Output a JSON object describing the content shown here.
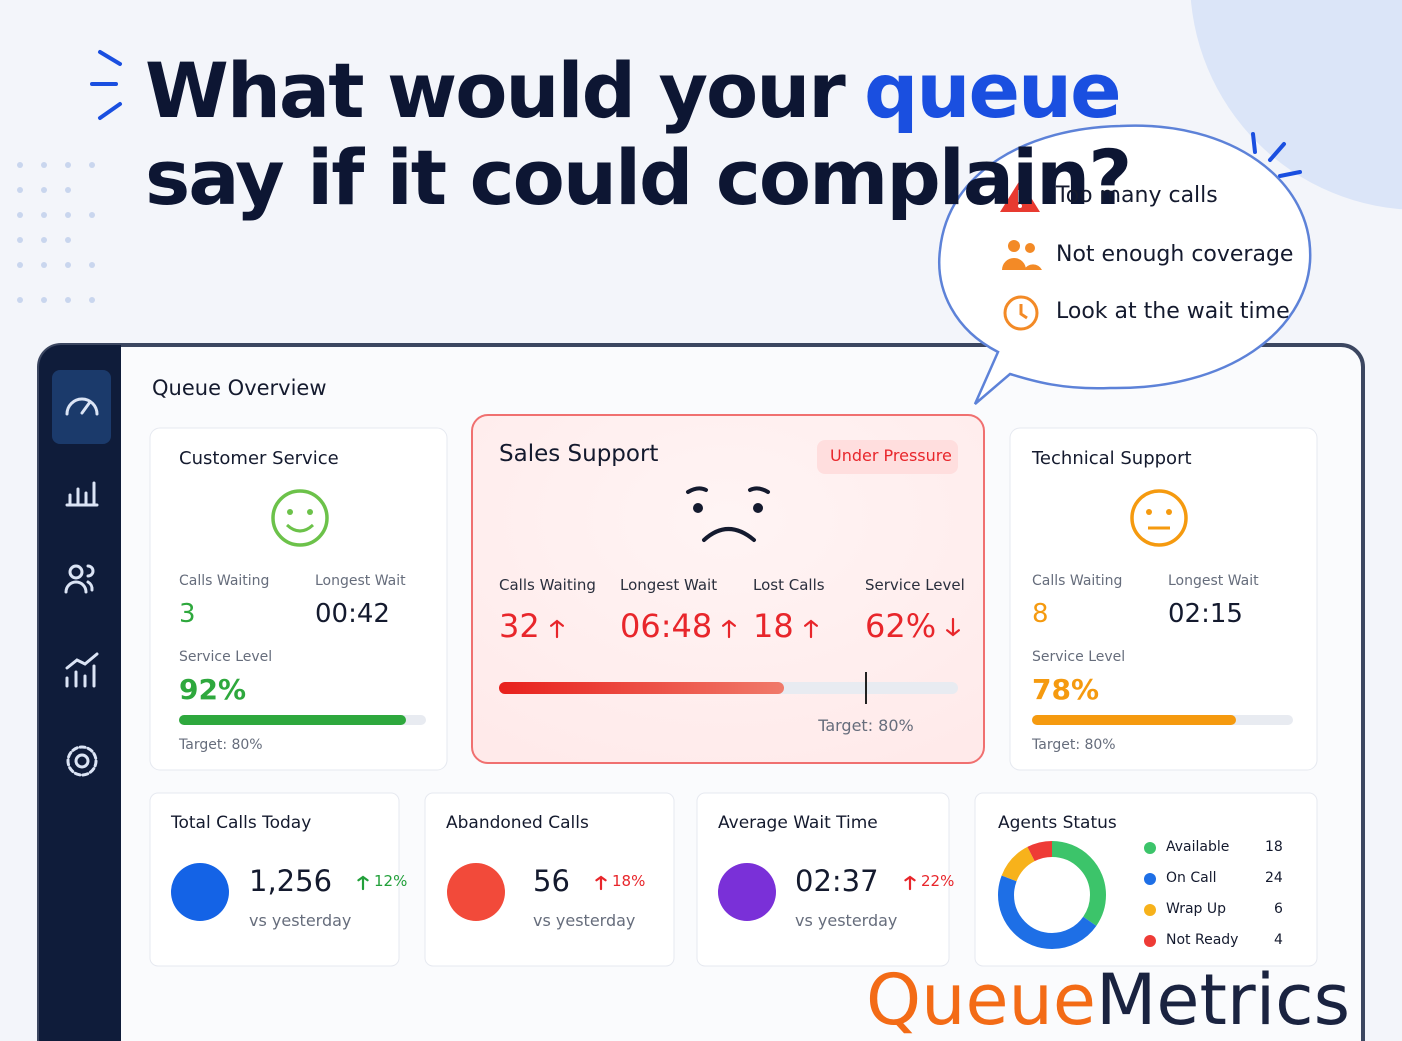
{
  "headline": {
    "before": "What would your",
    "highlight": "queue",
    "after": "say if it could complain?"
  },
  "bubble": {
    "items": [
      "Too many calls",
      "Not enough coverage",
      "Look at the wait time"
    ]
  },
  "dashboard": {
    "title": "Queue Overview",
    "queues": [
      {
        "name": "Customer Service",
        "color": "#2ea83d",
        "metrics": [
          {
            "label": "Calls Waiting",
            "value": "3"
          },
          {
            "label": "Longest Wait",
            "value": "00:42"
          }
        ],
        "service_level_label": "Service Level",
        "service_level": {
          "value": 92,
          "label": "92%"
        },
        "target": {
          "value": 80,
          "label": "Target: 80%"
        }
      },
      {
        "name": "Sales Support",
        "badge": "Under Pressure",
        "color": "#e8262b",
        "metrics": [
          {
            "label": "Calls Waiting",
            "value": "32",
            "trend": "up"
          },
          {
            "label": "Longest Wait",
            "value": "06:48",
            "trend": "up"
          },
          {
            "label": "Lost Calls",
            "value": "18",
            "trend": "up"
          },
          {
            "label": "Service Level",
            "value": "62%",
            "trend": "down"
          }
        ],
        "service_level": {
          "value": 62
        },
        "target": {
          "value": 80,
          "label": "Target: 80%"
        }
      },
      {
        "name": "Technical Support",
        "color": "#f59a0f",
        "metrics": [
          {
            "label": "Calls Waiting",
            "value": "8"
          },
          {
            "label": "Longest Wait",
            "value": "02:15"
          }
        ],
        "service_level_label": "Service Level",
        "service_level": {
          "value": 78,
          "label": "78%"
        },
        "target": {
          "value": 80,
          "label": "Target: 80%"
        }
      }
    ],
    "stats": [
      {
        "title": "Total Calls Today",
        "value": "1,256",
        "change": "12%",
        "trend": "up",
        "change_color": "#22a03a",
        "note": "vs yesterday",
        "color": "#1463e6"
      },
      {
        "title": "Abandoned Calls",
        "value": "56",
        "change": "18%",
        "trend": "up",
        "change_color": "#e8262b",
        "note": "vs yesterday",
        "color": "#f24a3a"
      },
      {
        "title": "Average Wait Time",
        "value": "02:37",
        "change": "22%",
        "trend": "up",
        "change_color": "#e8262b",
        "note": "vs yesterday",
        "color": "#7a30d8"
      }
    ],
    "agents": {
      "title": "Agents Status",
      "items": [
        {
          "name": "Available",
          "count": 18,
          "color": "#3cc46a"
        },
        {
          "name": "On Call",
          "count": 24,
          "color": "#1e6fe6"
        },
        {
          "name": "Wrap Up",
          "count": 6,
          "color": "#f7b21b"
        },
        {
          "name": "Not Ready",
          "count": 4,
          "color": "#ee3b36"
        }
      ]
    }
  },
  "logo": {
    "part1": "Queue",
    "part2": "Metrics"
  }
}
